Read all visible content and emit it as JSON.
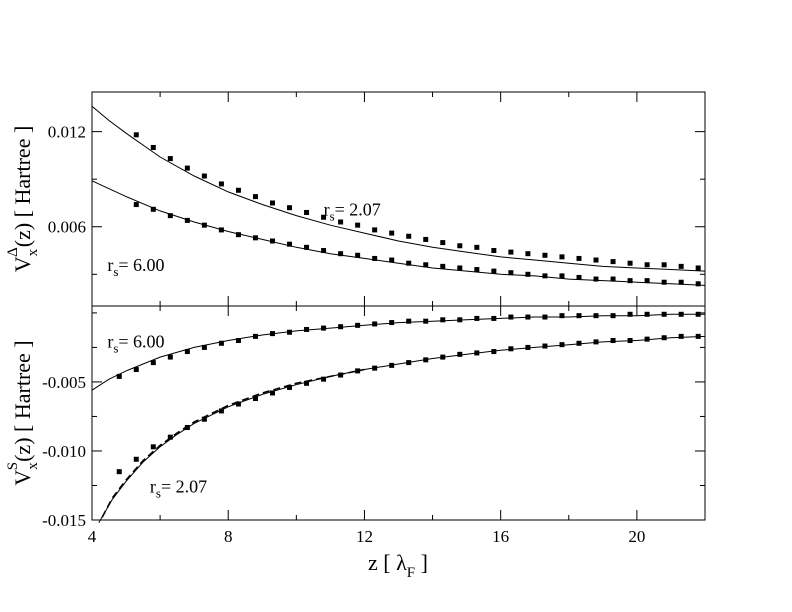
{
  "chart_data": [
    {
      "type": "line",
      "panel": "top",
      "ylabel": {
        "main": "V",
        "sub": "x",
        "sup": "Δ",
        "rest": "(z) [ Hartree ]"
      },
      "xlim": [
        4,
        22
      ],
      "ylim": [
        0.001,
        0.0145
      ],
      "yticks": [
        {
          "value": 0.006,
          "label": "0.006"
        },
        {
          "value": 0.012,
          "label": "0.012"
        }
      ],
      "series": [
        {
          "style": "line",
          "x": [
            4,
            4.5,
            5,
            6,
            7,
            8,
            9,
            10,
            11,
            12,
            13,
            14,
            15,
            16,
            17,
            18,
            19,
            20,
            21,
            22
          ],
          "y": [
            0.0136,
            0.0127,
            0.0119,
            0.0104,
            0.0092,
            0.0082,
            0.0074,
            0.0067,
            0.0061,
            0.0056,
            0.0051,
            0.0047,
            0.0044,
            0.0041,
            0.0039,
            0.0037,
            0.0035,
            0.0034,
            0.0033,
            0.0032
          ]
        },
        {
          "style": "markers",
          "x": [
            5.3,
            5.8,
            6.3,
            6.8,
            7.3,
            7.8,
            8.3,
            8.8,
            9.3,
            9.8,
            10.3,
            10.8,
            11.3,
            11.8,
            12.3,
            12.8,
            13.3,
            13.8,
            14.3,
            14.8,
            15.3,
            15.8,
            16.3,
            16.8,
            17.3,
            17.8,
            18.3,
            18.8,
            19.3,
            19.8,
            20.3,
            20.8,
            21.3,
            21.8
          ],
          "y": [
            0.0118,
            0.011,
            0.0103,
            0.0097,
            0.0092,
            0.0087,
            0.0083,
            0.0079,
            0.0075,
            0.0072,
            0.0069,
            0.0066,
            0.0063,
            0.0061,
            0.0058,
            0.0056,
            0.0054,
            0.0052,
            0.005,
            0.0048,
            0.0047,
            0.0045,
            0.0044,
            0.0043,
            0.0042,
            0.0041,
            0.004,
            0.0039,
            0.0038,
            0.0037,
            0.0036,
            0.0036,
            0.0035,
            0.0034
          ]
        },
        {
          "style": "line",
          "x": [
            4,
            4.5,
            5,
            6,
            7,
            8,
            9,
            10,
            11,
            12,
            13,
            14,
            15,
            16,
            17,
            18,
            19,
            20,
            21,
            22
          ],
          "y": [
            0.0089,
            0.0084,
            0.0079,
            0.007,
            0.0063,
            0.0057,
            0.0052,
            0.0047,
            0.0043,
            0.004,
            0.0037,
            0.0034,
            0.0032,
            0.003,
            0.0029,
            0.0027,
            0.0026,
            0.0025,
            0.0024,
            0.0023
          ]
        },
        {
          "style": "markers",
          "x": [
            5.3,
            5.8,
            6.3,
            6.8,
            7.3,
            7.8,
            8.3,
            8.8,
            9.3,
            9.8,
            10.3,
            10.8,
            11.3,
            11.8,
            12.3,
            12.8,
            13.3,
            13.8,
            14.3,
            14.8,
            15.3,
            15.8,
            16.3,
            16.8,
            17.3,
            17.8,
            18.3,
            18.8,
            19.3,
            19.8,
            20.3,
            20.8,
            21.3,
            21.8
          ],
          "y": [
            0.0074,
            0.0071,
            0.0067,
            0.0064,
            0.0061,
            0.0058,
            0.0055,
            0.0053,
            0.0051,
            0.0049,
            0.0047,
            0.0045,
            0.0043,
            0.0042,
            0.004,
            0.0039,
            0.0037,
            0.0036,
            0.0035,
            0.0034,
            0.0033,
            0.0032,
            0.0031,
            0.003,
            0.0029,
            0.0029,
            0.0028,
            0.0027,
            0.0027,
            0.0026,
            0.0026,
            0.0025,
            0.0025,
            0.0024
          ]
        }
      ],
      "annotations": [
        {
          "main": "r",
          "sub": "s",
          "rest": "= 2.07",
          "x": 10.8,
          "y": 0.0067
        },
        {
          "main": "r",
          "sub": "s",
          "rest": "= 6.00",
          "x": 4.45,
          "y": 0.0032
        }
      ]
    },
    {
      "type": "line",
      "panel": "bottom",
      "ylabel": {
        "main": "V",
        "sub": "x",
        "sup": "S",
        "rest": "(z) [ Hartree ]"
      },
      "xlabel": {
        "main": "z [ λ",
        "sub": "F",
        "rest": " ]"
      },
      "xlim": [
        4,
        22
      ],
      "ylim": [
        -0.015,
        0.0005
      ],
      "xticks": [
        {
          "value": 4,
          "label": "4"
        },
        {
          "value": 8,
          "label": "8"
        },
        {
          "value": 12,
          "label": "12"
        },
        {
          "value": 16,
          "label": "16"
        },
        {
          "value": 20,
          "label": "20"
        }
      ],
      "yticks": [
        {
          "value": -0.015,
          "label": "-0.015"
        },
        {
          "value": -0.01,
          "label": "-0.010"
        },
        {
          "value": -0.005,
          "label": "-0.005"
        }
      ],
      "series": [
        {
          "style": "line",
          "x": [
            4,
            4.5,
            5,
            5.5,
            6,
            7,
            8,
            9,
            10,
            11,
            12,
            13,
            14,
            15,
            16,
            17,
            18,
            19,
            20,
            21,
            22
          ],
          "y": [
            -0.0056,
            -0.0048,
            -0.0042,
            -0.0037,
            -0.0032,
            -0.0025,
            -0.002,
            -0.0016,
            -0.0013,
            -0.0011,
            -0.0009,
            -0.0007,
            -0.0006,
            -0.0005,
            -0.0004,
            -0.0003,
            -0.0003,
            -0.0002,
            -0.0002,
            -0.0001,
            -0.0001
          ]
        },
        {
          "style": "markers",
          "x": [
            4.8,
            5.3,
            5.8,
            6.3,
            6.8,
            7.3,
            7.8,
            8.3,
            8.8,
            9.3,
            9.8,
            10.3,
            10.8,
            11.3,
            11.8,
            12.3,
            12.8,
            13.3,
            13.8,
            14.3,
            14.8,
            15.3,
            15.8,
            16.3,
            16.8,
            17.3,
            17.8,
            18.3,
            18.8,
            19.3,
            19.8,
            20.3,
            20.8,
            21.3,
            21.8
          ],
          "y": [
            -0.0046,
            -0.0041,
            -0.0036,
            -0.0032,
            -0.0028,
            -0.0025,
            -0.0022,
            -0.002,
            -0.0017,
            -0.0015,
            -0.0014,
            -0.0012,
            -0.0011,
            -0.001,
            -0.0009,
            -0.0008,
            -0.0007,
            -0.0006,
            -0.0006,
            -0.0005,
            -0.0005,
            -0.0004,
            -0.0004,
            -0.0003,
            -0.0003,
            -0.0003,
            -0.0002,
            -0.0002,
            -0.0002,
            -0.0002,
            -0.0001,
            -0.0001,
            -0.0001,
            -0.0001,
            -0.0001
          ]
        },
        {
          "style": "line",
          "x": [
            4.2,
            4.6,
            5,
            5.5,
            6,
            6.5,
            7,
            8,
            9,
            10,
            11,
            12,
            13,
            14,
            15,
            16,
            17,
            18,
            19,
            20,
            21,
            22
          ],
          "y": [
            -0.0152,
            -0.0135,
            -0.0122,
            -0.0108,
            -0.0097,
            -0.0088,
            -0.008,
            -0.0068,
            -0.0059,
            -0.0052,
            -0.0046,
            -0.0041,
            -0.0037,
            -0.0033,
            -0.003,
            -0.0027,
            -0.0025,
            -0.0023,
            -0.0021,
            -0.002,
            -0.0018,
            -0.0017
          ]
        },
        {
          "style": "dashed",
          "x": [
            4.3,
            4.6,
            5,
            5.5,
            6,
            6.5,
            7,
            8,
            9,
            10,
            11,
            12
          ],
          "y": [
            -0.0148,
            -0.0134,
            -0.0121,
            -0.0107,
            -0.0096,
            -0.0087,
            -0.0079,
            -0.0067,
            -0.0058,
            -0.0051,
            -0.0046,
            -0.0041
          ]
        },
        {
          "style": "markers",
          "x": [
            4.8,
            5.3,
            5.8,
            6.3,
            6.8,
            7.3,
            7.8,
            8.3,
            8.8,
            9.3,
            9.8,
            10.3,
            10.8,
            11.3,
            11.8,
            12.3,
            12.8,
            13.3,
            13.8,
            14.3,
            14.8,
            15.3,
            15.8,
            16.3,
            16.8,
            17.3,
            17.8,
            18.3,
            18.8,
            19.3,
            19.8,
            20.3,
            20.8,
            21.3,
            21.8
          ],
          "y": [
            -0.0115,
            -0.0106,
            -0.0097,
            -0.009,
            -0.0083,
            -0.0077,
            -0.0071,
            -0.0066,
            -0.0062,
            -0.0058,
            -0.0054,
            -0.0051,
            -0.0048,
            -0.0045,
            -0.0042,
            -0.004,
            -0.0038,
            -0.0036,
            -0.0034,
            -0.0032,
            -0.003,
            -0.0029,
            -0.0028,
            -0.0026,
            -0.0025,
            -0.0024,
            -0.0023,
            -0.0022,
            -0.0021,
            -0.002,
            -0.002,
            -0.0019,
            -0.0018,
            -0.0017,
            -0.0017
          ]
        }
      ],
      "annotations": [
        {
          "main": "r",
          "sub": "s",
          "rest": "= 6.00",
          "x": 4.45,
          "y": -0.0025
        },
        {
          "main": "r",
          "sub": "s",
          "rest": "= 2.07",
          "x": 5.7,
          "y": -0.013
        }
      ]
    }
  ]
}
